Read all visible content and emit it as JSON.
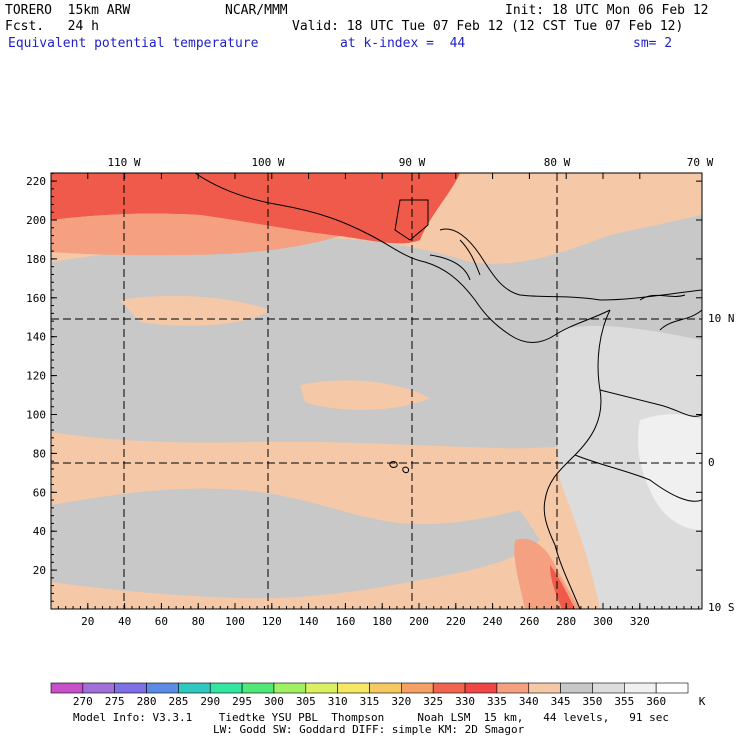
{
  "header": {
    "model": "TORERO  15km ARW",
    "org": "NCAR/MMM",
    "init": "Init: 18 UTC Mon 06 Feb 12",
    "fcst": "Fcst.   24 h",
    "valid": "Valid: 18 UTC Tue 07 Feb 12 (12 CST Tue 07 Feb 12)",
    "field": "Equivalent potential temperature",
    "level": "at k-index =  44",
    "smooth": "sm= 2"
  },
  "axes": {
    "x_grid_ticks": [
      "20",
      "40",
      "60",
      "80",
      "100",
      "120",
      "140",
      "160",
      "180",
      "200",
      "220",
      "240",
      "260",
      "280",
      "300",
      "320"
    ],
    "y_grid_ticks": [
      "20",
      "40",
      "60",
      "80",
      "100",
      "120",
      "140",
      "160",
      "180",
      "200",
      "220"
    ],
    "lon_labels": [
      "110 W",
      "100 W",
      "90 W",
      "80 W",
      "70 W"
    ],
    "lat_labels": [
      "10 N",
      "0",
      "10 S"
    ]
  },
  "colorbar": {
    "levels": [
      "270",
      "275",
      "280",
      "285",
      "290",
      "295",
      "300",
      "305",
      "310",
      "315",
      "320",
      "325",
      "330",
      "335",
      "340",
      "345",
      "350",
      "355",
      "360"
    ],
    "unit": "K",
    "colors": [
      "#c850c8",
      "#a070d8",
      "#8070e8",
      "#5a8ce6",
      "#30c8c0",
      "#30e6a0",
      "#50e878",
      "#a0f064",
      "#dcf064",
      "#f5e664",
      "#f5c864",
      "#f5a064",
      "#f06450",
      "#f04646",
      "#f5a080",
      "#f5c8a8",
      "#c8c8c8",
      "#dcdcdc",
      "#f0f0f0",
      "#ffffff"
    ]
  },
  "footer": {
    "line1": "Model Info: V3.3.1    Tiedtke YSU PBL  Thompson     Noah LSM  15 km,   44 levels,   91 sec",
    "line2": "LW: Godd SW: Goddard DIFF: simple KM: 2D Smagor"
  }
}
